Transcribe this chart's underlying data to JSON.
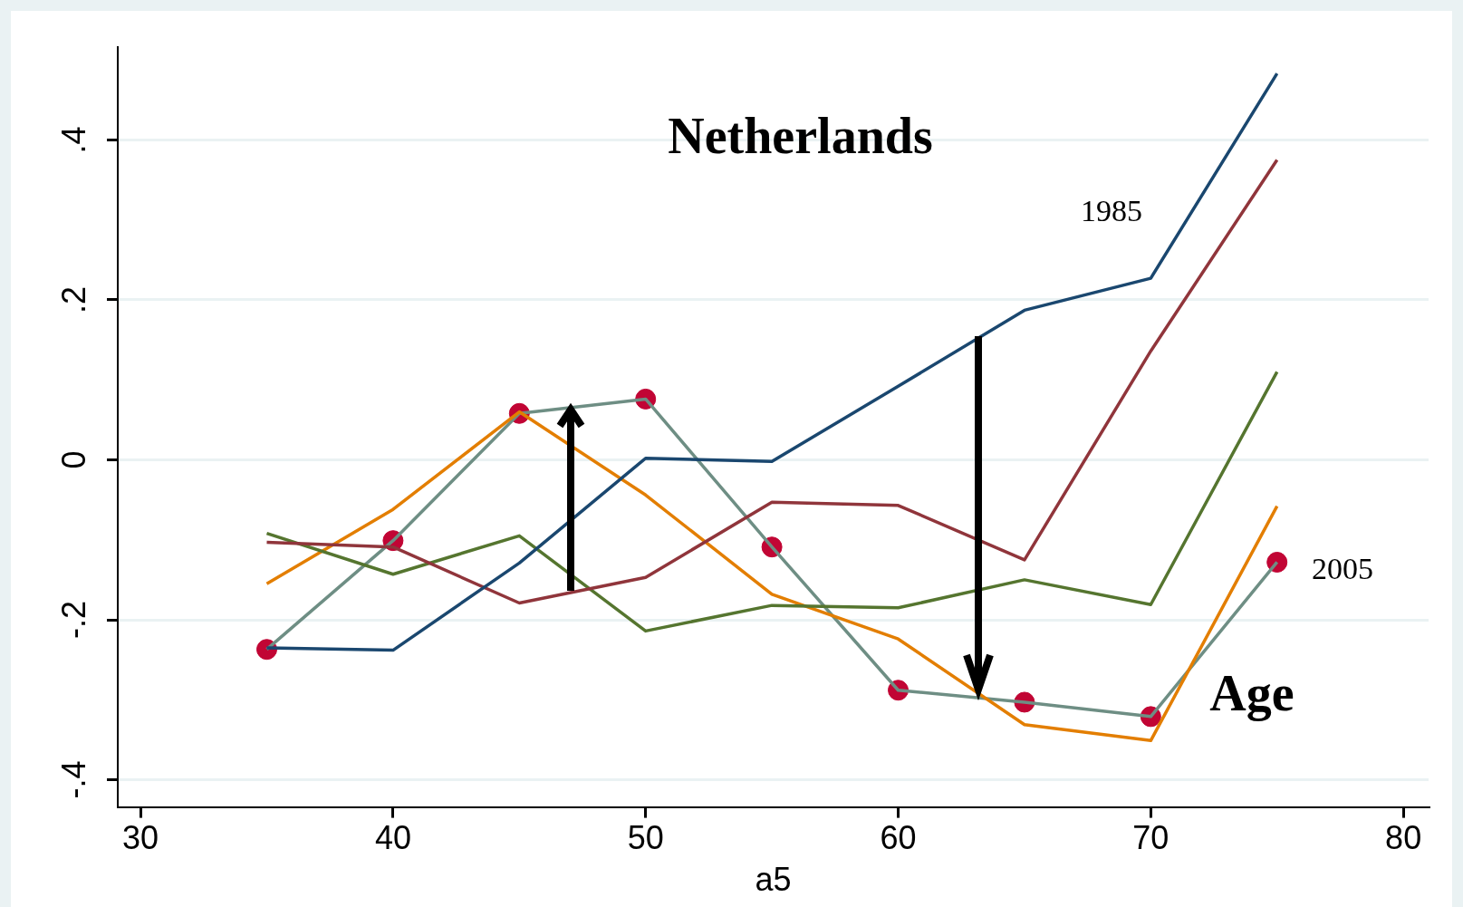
{
  "chart_data": {
    "type": "line",
    "title": "Netherlands",
    "xlabel": "a5",
    "x": [
      35,
      40,
      45,
      50,
      55,
      60,
      65,
      70,
      75
    ],
    "series": [
      {
        "color": "#1a476f",
        "values": [
          -0.235,
          -0.238,
          -0.129,
          0.002,
          -0.002,
          0.092,
          0.187,
          0.227,
          0.483
        ]
      },
      {
        "color": "#90353b",
        "values": [
          -0.103,
          -0.109,
          -0.179,
          -0.147,
          -0.053,
          -0.057,
          -0.125,
          0.136,
          0.375
        ]
      },
      {
        "color": "#55752f",
        "values": [
          -0.092,
          -0.143,
          -0.095,
          -0.214,
          -0.182,
          -0.185,
          -0.15,
          -0.181,
          0.11
        ]
      },
      {
        "color": "#e37e00",
        "values": [
          -0.155,
          -0.062,
          0.06,
          -0.044,
          -0.168,
          -0.224,
          -0.331,
          -0.351,
          -0.058
        ]
      },
      {
        "color": "#6e8e84",
        "values": [
          -0.237,
          -0.101,
          0.058,
          0.076,
          -0.109,
          -0.288,
          -0.303,
          -0.321,
          -0.128
        ]
      },
      {
        "type": "scatter",
        "color": "#c10534",
        "values": [
          -0.237,
          -0.101,
          0.058,
          0.076,
          -0.109,
          -0.288,
          -0.303,
          -0.321,
          -0.128
        ]
      }
    ],
    "xlim": [
      29.1,
      81
    ],
    "xticks": [
      30,
      40,
      50,
      60,
      70,
      80
    ],
    "ylim": [
      -0.434,
      0.516
    ],
    "yticks": [
      {
        "value": -0.4,
        "label": "-.4"
      },
      {
        "value": -0.2,
        "label": "-.2"
      },
      {
        "value": 0,
        "label": "0"
      },
      {
        "value": 0.2,
        "label": ".2"
      },
      {
        "value": 0.4,
        "label": ".4"
      }
    ],
    "grid": "y",
    "legend": false,
    "annotations": [
      "1985",
      "2005",
      "Age"
    ]
  }
}
